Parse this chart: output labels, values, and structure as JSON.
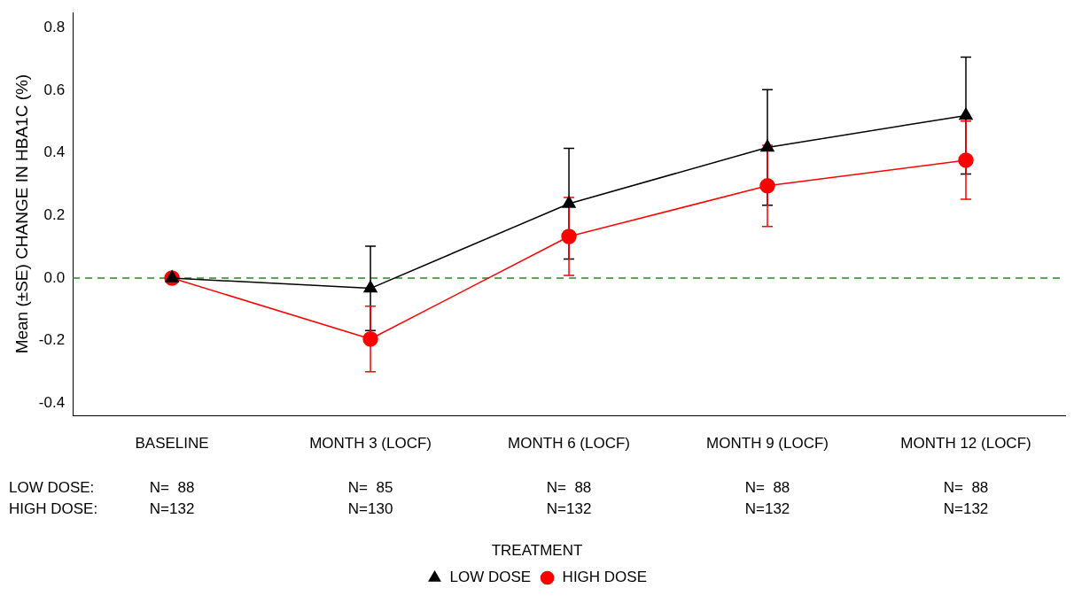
{
  "chart_data": {
    "type": "line",
    "ylabel": "Mean (±SE) CHANGE IN HBA1C (%)",
    "legend_title": "TREATMENT",
    "categories": [
      "BASELINE",
      "MONTH 3 (LOCF)",
      "MONTH 6 (LOCF)",
      "MONTH 9 (LOCF)",
      "MONTH 12 (LOCF)"
    ],
    "series": [
      {
        "name": "LOW DOSE",
        "color": "#000000",
        "marker": "triangle",
        "values": [
          0,
          -0.033,
          0.238,
          0.418,
          0.52
        ],
        "errors": [
          null,
          0.135,
          0.177,
          0.185,
          0.187
        ]
      },
      {
        "name": "HIGH DOSE",
        "color": "#ff0000",
        "marker": "circle",
        "values": [
          0,
          -0.195,
          0.133,
          0.295,
          0.377
        ],
        "errors": [
          null,
          0.105,
          0.125,
          0.13,
          0.125
        ]
      }
    ],
    "ylim": [
      -0.44,
      0.85
    ],
    "yticks": [
      {
        "value": -0.4,
        "label": "-0.4"
      },
      {
        "value": -0.2,
        "label": "-0.2"
      },
      {
        "value": 0,
        "label": "0.0"
      },
      {
        "value": 0.2,
        "label": "0.2"
      },
      {
        "value": 0.4,
        "label": "0.4"
      },
      {
        "value": 0.6,
        "label": "0.6"
      },
      {
        "value": 0.8,
        "label": "0.8"
      }
    ],
    "ref_lines": [
      {
        "axis": "y",
        "value": 0,
        "color": "#228b22",
        "line_style": "dashed"
      }
    ],
    "annotations": [
      "LOW DOSE:",
      "HIGH DOSE:",
      "N=  88",
      "N=132",
      "N=  85",
      "N=130",
      "N=  88",
      "N=132",
      "N=  88",
      "N=132",
      "N=  88",
      "N=132"
    ],
    "grid": false,
    "legend": "bottom",
    "line_style": "solid"
  }
}
